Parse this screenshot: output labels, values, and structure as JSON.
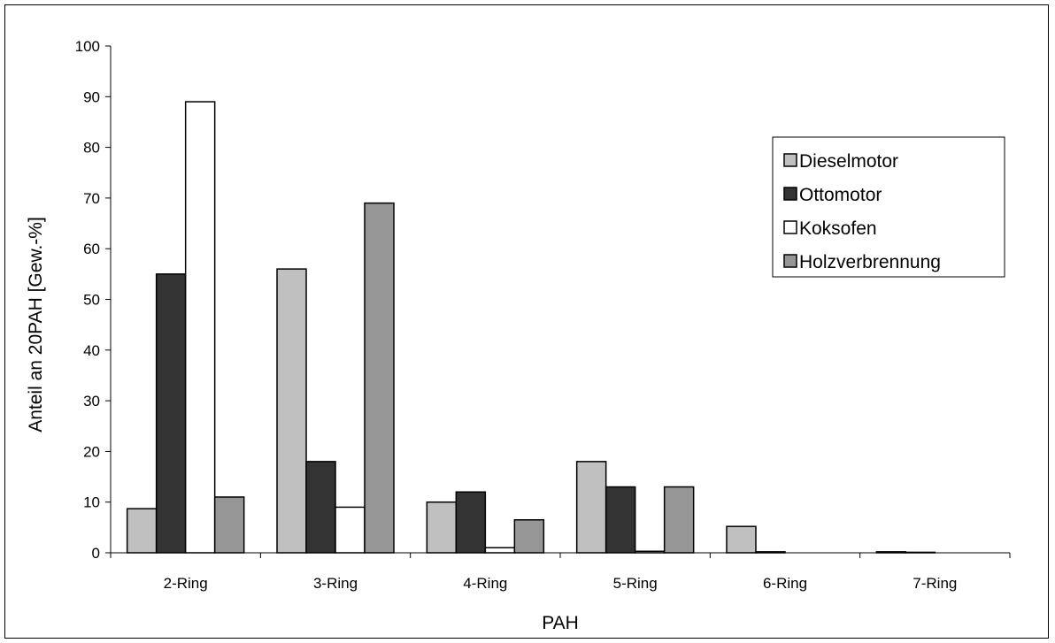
{
  "chart_data": {
    "type": "bar",
    "xlabel": "PAH",
    "ylabel": "Anteil an 20PAH [Gew.-%]",
    "ylim": [
      0,
      100
    ],
    "yticks": [
      0,
      10,
      20,
      30,
      40,
      50,
      60,
      70,
      80,
      90,
      100
    ],
    "grid": false,
    "legend_position": "right",
    "categories": [
      "2-Ring",
      "3-Ring",
      "4-Ring",
      "5-Ring",
      "6-Ring",
      "7-Ring"
    ],
    "series": [
      {
        "name": "Dieselmotor",
        "color": "#c0c0c0",
        "values": [
          8.7,
          56,
          10,
          18,
          5.2,
          0.2
        ]
      },
      {
        "name": "Ottomotor",
        "color": "#333333",
        "values": [
          55,
          18,
          12,
          13,
          0.2,
          0.1
        ]
      },
      {
        "name": "Koksofen",
        "color": "#ffffff",
        "values": [
          89,
          9,
          1,
          0.3,
          0,
          0
        ]
      },
      {
        "name": "Holzverbrennung",
        "color": "#969696",
        "values": [
          11,
          69,
          6.5,
          13,
          0,
          0
        ]
      }
    ]
  }
}
